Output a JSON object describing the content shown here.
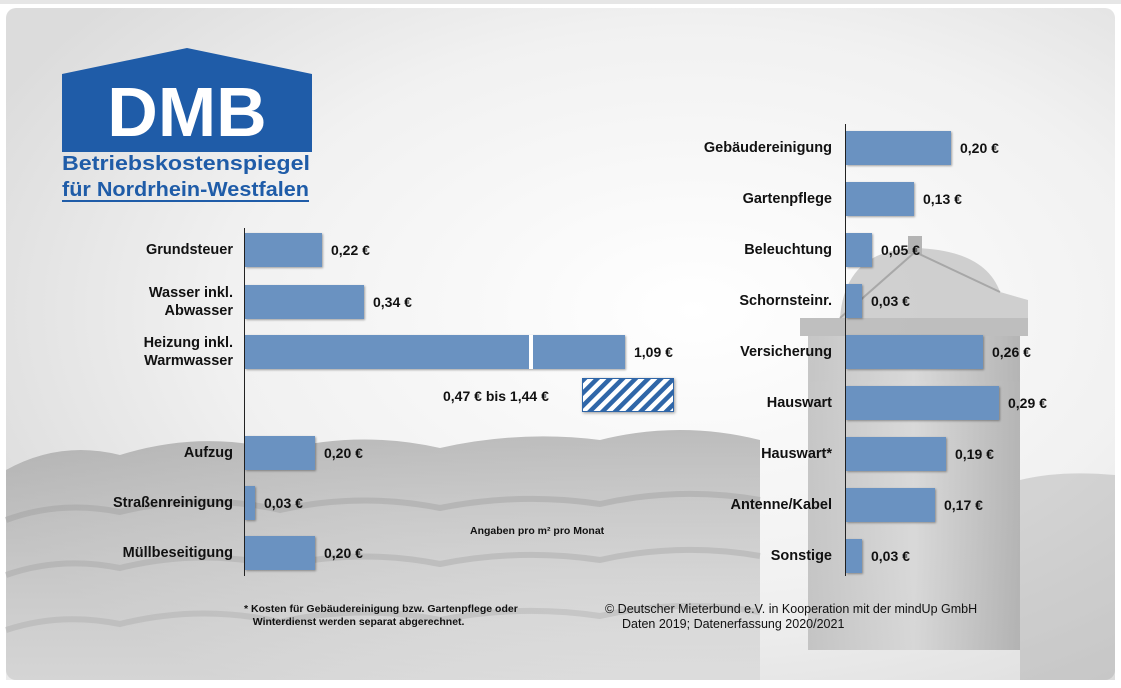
{
  "brand": {
    "logo_text": "DMB",
    "title_line1": "Betriebskostenspiegel",
    "title_line2": "für Nordrhein-Westfalen"
  },
  "colors": {
    "brand_blue": "#1f5ca8",
    "bar_blue": "#6a92c1",
    "hatch_blue": "#2f66a8"
  },
  "chart_data": [
    {
      "type": "bar",
      "orientation": "horizontal",
      "categories": [
        "Grundsteuer",
        "Wasser inkl.\nAbwasser",
        "Heizung inkl.\nWarmwasser",
        "Aufzug",
        "Straßenreinigung",
        "Müllbeseitigung"
      ],
      "values": [
        0.22,
        0.34,
        1.09,
        0.2,
        0.03,
        0.2
      ],
      "value_labels": [
        "0,22 €",
        "0,34 €",
        "1,09 €",
        "0,20 €",
        "0,03 €",
        "0,20 €"
      ],
      "range_note": "0,47 € bis 1,44 €",
      "range": [
        0.47,
        1.44
      ]
    },
    {
      "type": "bar",
      "orientation": "horizontal",
      "categories": [
        "Gebäudereinigung",
        "Gartenpflege",
        "Beleuchtung",
        "Schornsteinr.",
        "Versicherung",
        "Hauswart",
        "Hauswart*",
        "Antenne/Kabel",
        "Sonstige"
      ],
      "values": [
        0.2,
        0.13,
        0.05,
        0.03,
        0.26,
        0.29,
        0.19,
        0.17,
        0.03
      ],
      "value_labels": [
        "0,20 €",
        "0,13 €",
        "0,05 €",
        "0,03 €",
        "0,26 €",
        "0,29 €",
        "0,19 €",
        "0,17 €",
        "0,03 €"
      ]
    }
  ],
  "unit_note": "Angaben pro m² pro Monat",
  "footnote": "* Kosten für Gebäudereinigung bzw. Gartenpflege oder\n   Winterdienst werden separat abgerechnet.",
  "credit": {
    "line1": "© Deutscher Mieterbund e.V. in Kooperation mit der mindUp GmbH",
    "line2": "Daten 2019; Datenerfassung 2020/2021"
  }
}
